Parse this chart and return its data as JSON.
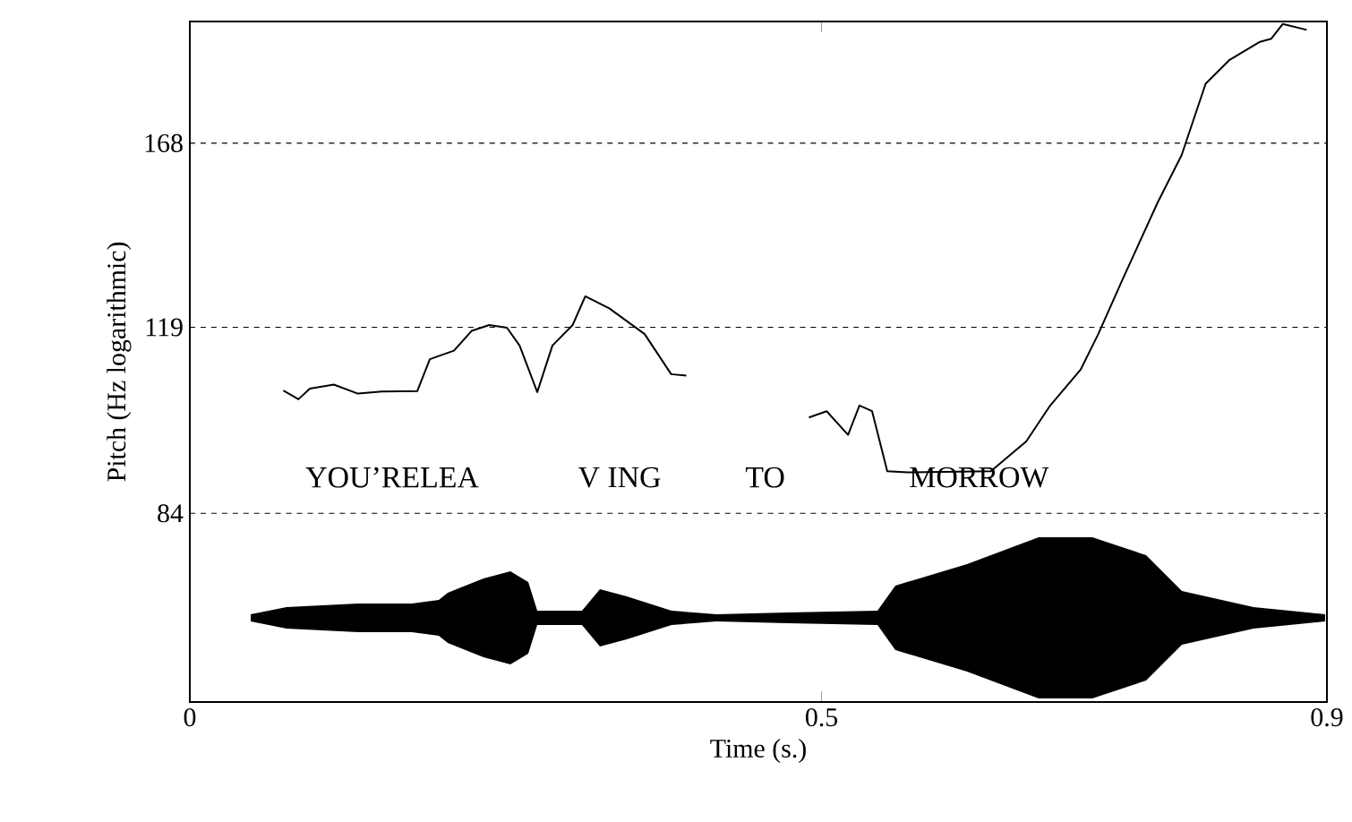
{
  "chart_data": {
    "type": "line",
    "xlabel": "Time (s.)",
    "ylabel": "Pitch (Hz logarithmic)",
    "series": [
      {
        "color": "#000000",
        "x": [
          0.074,
          0.086,
          0.095,
          0.114,
          0.133,
          0.152,
          0.18,
          0.19,
          0.209,
          0.223,
          0.237,
          0.251,
          0.261,
          0.275,
          0.287,
          0.303,
          0.313,
          0.332,
          0.36,
          0.381,
          0.393
        ],
        "values": [
          105.7,
          104.0,
          106.1,
          106.9,
          105.1,
          105.5,
          105.6,
          112.1,
          113.9,
          118.2,
          119.5,
          118.9,
          115.0,
          105.4,
          115.0,
          119.5,
          126.1,
          123.3,
          117.5,
          109.0,
          108.7
        ]
      },
      {
        "color": "#000000",
        "x": [
          0.49,
          0.504,
          0.521,
          0.53,
          0.54,
          0.552,
          0.568,
          0.634,
          0.662,
          0.681,
          0.705,
          0.719,
          0.738,
          0.766,
          0.785,
          0.804,
          0.823,
          0.847,
          0.856,
          0.865,
          0.884
        ],
        "values": [
          100.5,
          101.7,
          97.3,
          102.8,
          101.7,
          90.9,
          90.7,
          90.9,
          96.1,
          102.8,
          109.9,
          117.5,
          130.0,
          150.3,
          164.3,
          187.8,
          196.4,
          203.1,
          204.3,
          210.0,
          207.7
        ]
      }
    ],
    "xlim": [
      0,
      0.9
    ],
    "ylim": [
      59,
      211
    ],
    "xticks": [
      0,
      0.5,
      0.9
    ],
    "yticks": [
      84,
      119,
      168
    ],
    "log": "y",
    "grid": "y",
    "line_style": "solid",
    "annotations": [
      "YOU’RELEA",
      "V ING",
      "TO",
      "MORROW"
    ]
  }
}
